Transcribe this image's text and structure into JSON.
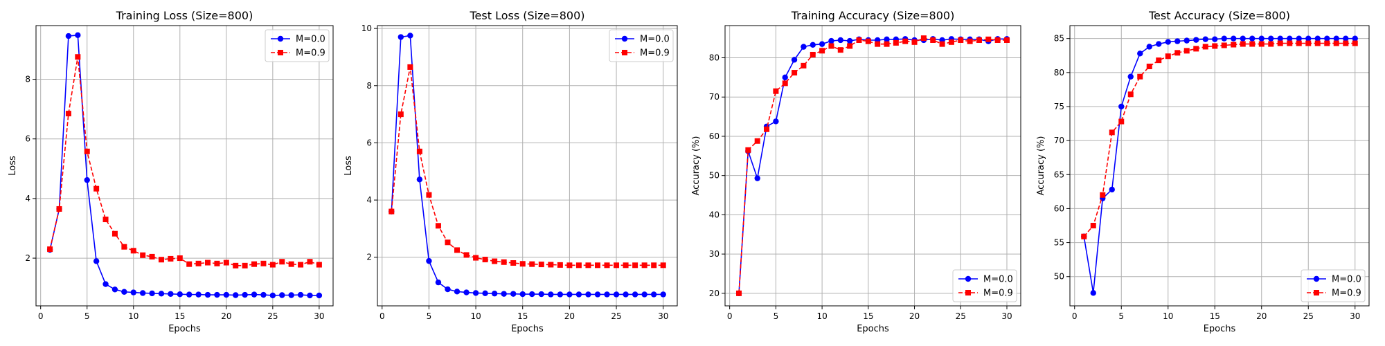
{
  "chart_data": [
    {
      "type": "line",
      "title": "Training Loss (Size=800)",
      "xlabel": "Epochs",
      "ylabel": "Loss",
      "xlim": [
        -0.5,
        31.5
      ],
      "ylim": [
        0.4,
        9.8
      ],
      "xticks": [
        0,
        5,
        10,
        15,
        20,
        25,
        30
      ],
      "yticks": [
        2,
        4,
        6,
        8
      ],
      "grid": true,
      "legend": "top-right",
      "x": [
        1,
        2,
        3,
        4,
        5,
        6,
        7,
        8,
        9,
        10,
        11,
        12,
        13,
        14,
        15,
        16,
        17,
        18,
        19,
        20,
        21,
        22,
        23,
        24,
        25,
        26,
        27,
        28,
        29,
        30
      ],
      "series": [
        {
          "name": "M=0.0",
          "color": "#0000ff",
          "marker": "circle",
          "linestyle": "solid",
          "values": [
            2.28,
            3.65,
            9.45,
            9.48,
            4.62,
            1.9,
            1.13,
            0.95,
            0.87,
            0.85,
            0.83,
            0.82,
            0.81,
            0.8,
            0.79,
            0.78,
            0.78,
            0.77,
            0.77,
            0.77,
            0.76,
            0.77,
            0.78,
            0.77,
            0.75,
            0.76,
            0.76,
            0.77,
            0.75,
            0.75
          ]
        },
        {
          "name": "M=0.9",
          "color": "#ff0000",
          "marker": "square",
          "linestyle": "dashed",
          "values": [
            2.3,
            3.65,
            6.85,
            8.75,
            5.58,
            4.33,
            3.3,
            2.82,
            2.38,
            2.25,
            2.1,
            2.05,
            1.95,
            1.98,
            2.0,
            1.8,
            1.82,
            1.85,
            1.82,
            1.85,
            1.75,
            1.75,
            1.8,
            1.82,
            1.78,
            1.88,
            1.8,
            1.78,
            1.88,
            1.78
          ]
        }
      ]
    },
    {
      "type": "line",
      "title": "Test Loss (Size=800)",
      "xlabel": "Epochs",
      "ylabel": "Loss",
      "xlim": [
        -0.5,
        31.5
      ],
      "ylim": [
        0.3,
        10.1
      ],
      "xticks": [
        0,
        5,
        10,
        15,
        20,
        25,
        30
      ],
      "yticks": [
        2,
        4,
        6,
        8,
        10
      ],
      "grid": true,
      "legend": "top-right",
      "x": [
        1,
        2,
        3,
        4,
        5,
        6,
        7,
        8,
        9,
        10,
        11,
        12,
        13,
        14,
        15,
        16,
        17,
        18,
        19,
        20,
        21,
        22,
        23,
        24,
        25,
        26,
        27,
        28,
        29,
        30
      ],
      "series": [
        {
          "name": "M=0.0",
          "color": "#0000ff",
          "marker": "circle",
          "linestyle": "solid",
          "values": [
            3.6,
            9.7,
            9.75,
            4.72,
            1.87,
            1.12,
            0.88,
            0.8,
            0.77,
            0.75,
            0.74,
            0.73,
            0.72,
            0.72,
            0.71,
            0.71,
            0.71,
            0.7,
            0.7,
            0.7,
            0.7,
            0.7,
            0.7,
            0.7,
            0.7,
            0.7,
            0.7,
            0.7,
            0.7,
            0.7
          ]
        },
        {
          "name": "M=0.9",
          "color": "#ff0000",
          "marker": "square",
          "linestyle": "dashed",
          "values": [
            3.6,
            7.0,
            8.65,
            5.7,
            4.18,
            3.1,
            2.52,
            2.25,
            2.08,
            1.98,
            1.92,
            1.86,
            1.83,
            1.8,
            1.77,
            1.76,
            1.75,
            1.74,
            1.73,
            1.72,
            1.72,
            1.72,
            1.72,
            1.72,
            1.72,
            1.72,
            1.72,
            1.72,
            1.72,
            1.72
          ]
        }
      ]
    },
    {
      "type": "line",
      "title": "Training Accuracy (Size=800)",
      "xlabel": "Epochs",
      "ylabel": "Accuracy (%)",
      "xlim": [
        -0.5,
        31.5
      ],
      "ylim": [
        16.8,
        88.2
      ],
      "xticks": [
        0,
        5,
        10,
        15,
        20,
        25,
        30
      ],
      "yticks": [
        20,
        30,
        40,
        50,
        60,
        70,
        80
      ],
      "grid": true,
      "legend": "bottom-right",
      "x": [
        1,
        2,
        3,
        4,
        5,
        6,
        7,
        8,
        9,
        10,
        11,
        12,
        13,
        14,
        15,
        16,
        17,
        18,
        19,
        20,
        21,
        22,
        23,
        24,
        25,
        26,
        27,
        28,
        29,
        30
      ],
      "series": [
        {
          "name": "M=0.0",
          "color": "#0000ff",
          "marker": "circle",
          "linestyle": "solid",
          "values": [
            20.0,
            56.2,
            49.3,
            62.5,
            63.8,
            75.0,
            79.5,
            82.8,
            83.3,
            83.5,
            84.3,
            84.5,
            84.3,
            84.7,
            84.5,
            84.5,
            84.7,
            84.7,
            84.8,
            84.5,
            84.5,
            84.8,
            84.5,
            84.8,
            84.7,
            84.7,
            84.7,
            84.2,
            84.8,
            84.8
          ]
        },
        {
          "name": "M=0.9",
          "color": "#ff0000",
          "marker": "square",
          "linestyle": "dashed",
          "values": [
            20.0,
            56.5,
            58.8,
            61.8,
            71.5,
            73.5,
            76.2,
            78.0,
            80.8,
            81.8,
            83.0,
            82.0,
            83.0,
            84.5,
            84.2,
            83.5,
            83.5,
            83.8,
            84.2,
            84.0,
            85.0,
            84.5,
            83.5,
            84.0,
            84.5,
            84.2,
            84.5,
            84.7,
            84.5,
            84.5
          ]
        }
      ]
    },
    {
      "type": "line",
      "title": "Test Accuracy (Size=800)",
      "xlabel": "Epochs",
      "ylabel": "Accuracy (%)",
      "xlim": [
        -0.5,
        31.5
      ],
      "ylim": [
        45.7,
        86.9
      ],
      "xticks": [
        0,
        5,
        10,
        15,
        20,
        25,
        30
      ],
      "yticks": [
        50,
        55,
        60,
        65,
        70,
        75,
        80,
        85
      ],
      "grid": true,
      "legend": "bottom-right",
      "x": [
        1,
        2,
        3,
        4,
        5,
        6,
        7,
        8,
        9,
        10,
        11,
        12,
        13,
        14,
        15,
        16,
        17,
        18,
        19,
        20,
        21,
        22,
        23,
        24,
        25,
        26,
        27,
        28,
        29,
        30
      ],
      "series": [
        {
          "name": "M=0.0",
          "color": "#0000ff",
          "marker": "circle",
          "linestyle": "solid",
          "values": [
            55.9,
            47.6,
            61.5,
            62.8,
            75.0,
            79.4,
            82.8,
            83.8,
            84.2,
            84.5,
            84.6,
            84.7,
            84.8,
            84.9,
            84.9,
            85.0,
            85.0,
            85.0,
            85.0,
            85.0,
            85.0,
            85.0,
            85.0,
            85.0,
            85.0,
            85.0,
            85.0,
            85.0,
            85.0,
            85.0
          ]
        },
        {
          "name": "M=0.9",
          "color": "#ff0000",
          "marker": "square",
          "linestyle": "dashed",
          "values": [
            55.9,
            57.5,
            62.0,
            71.2,
            72.8,
            76.8,
            79.4,
            80.9,
            81.8,
            82.4,
            82.9,
            83.2,
            83.5,
            83.8,
            83.9,
            84.0,
            84.1,
            84.2,
            84.2,
            84.2,
            84.2,
            84.3,
            84.3,
            84.3,
            84.3,
            84.3,
            84.3,
            84.3,
            84.3,
            84.3
          ]
        }
      ]
    }
  ]
}
